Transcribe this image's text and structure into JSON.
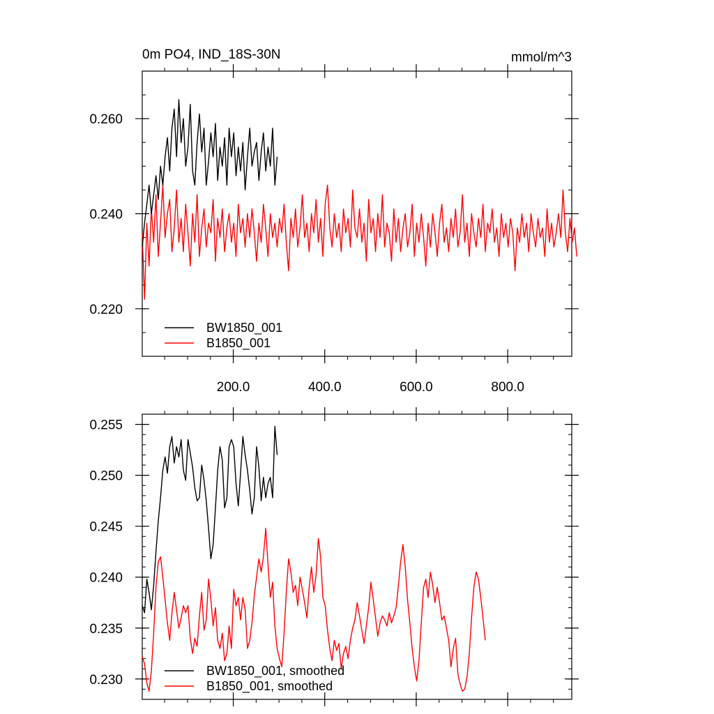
{
  "chart_data": [
    {
      "type": "line",
      "title": "0m PO4, IND_18S-30N",
      "units": "mmol/m^3",
      "xlabel": "",
      "ylabel": "",
      "xlim": [
        1,
        940
      ],
      "ylim": [
        0.21,
        0.27
      ],
      "x_ticks": [
        200,
        400,
        600,
        800
      ],
      "x_tick_labels": [
        "200.0",
        "400.0",
        "600.0",
        "800.0"
      ],
      "y_ticks": [
        0.22,
        0.24,
        0.26
      ],
      "y_tick_labels": [
        "0.220",
        "0.240",
        "0.260"
      ],
      "grid": false,
      "legend_position": "bottom-left",
      "series": [
        {
          "name": "BW1850_001",
          "color": "#000000",
          "x_start": 1,
          "x_step": 5,
          "values": [
            0.233,
            0.238,
            0.242,
            0.246,
            0.24,
            0.244,
            0.248,
            0.243,
            0.25,
            0.246,
            0.252,
            0.256,
            0.249,
            0.258,
            0.262,
            0.252,
            0.264,
            0.255,
            0.26,
            0.25,
            0.254,
            0.263,
            0.249,
            0.246,
            0.255,
            0.261,
            0.253,
            0.258,
            0.246,
            0.251,
            0.257,
            0.252,
            0.259,
            0.247,
            0.254,
            0.25,
            0.256,
            0.246,
            0.258,
            0.252,
            0.257,
            0.248,
            0.254,
            0.249,
            0.255,
            0.245,
            0.252,
            0.258,
            0.25,
            0.253,
            0.255,
            0.247,
            0.253,
            0.257,
            0.249,
            0.254,
            0.25,
            0.258,
            0.246,
            0.252
          ]
        },
        {
          "name": "B1850_001",
          "color": "#ff0000",
          "x_start": 1,
          "x_step": 5,
          "values": [
            0.236,
            0.222,
            0.238,
            0.229,
            0.241,
            0.234,
            0.244,
            0.231,
            0.238,
            0.246,
            0.235,
            0.24,
            0.243,
            0.232,
            0.237,
            0.245,
            0.234,
            0.239,
            0.232,
            0.242,
            0.236,
            0.229,
            0.24,
            0.234,
            0.244,
            0.231,
            0.237,
            0.241,
            0.233,
            0.238,
            0.236,
            0.243,
            0.23,
            0.239,
            0.235,
            0.241,
            0.232,
            0.237,
            0.24,
            0.234,
            0.238,
            0.231,
            0.242,
            0.236,
            0.239,
            0.233,
            0.24,
            0.235,
            0.241,
            0.236,
            0.23,
            0.238,
            0.234,
            0.242,
            0.237,
            0.231,
            0.24,
            0.235,
            0.238,
            0.233,
            0.239,
            0.236,
            0.242,
            0.234,
            0.228,
            0.239,
            0.235,
            0.241,
            0.233,
            0.237,
            0.244,
            0.235,
            0.238,
            0.232,
            0.24,
            0.236,
            0.243,
            0.234,
            0.239,
            0.231,
            0.242,
            0.246,
            0.237,
            0.233,
            0.24,
            0.235,
            0.238,
            0.232,
            0.241,
            0.236,
            0.239,
            0.233,
            0.245,
            0.237,
            0.235,
            0.241,
            0.234,
            0.238,
            0.23,
            0.243,
            0.236,
            0.239,
            0.232,
            0.24,
            0.235,
            0.244,
            0.233,
            0.238,
            0.236,
            0.23,
            0.241,
            0.234,
            0.239,
            0.232,
            0.237,
            0.24,
            0.233,
            0.236,
            0.242,
            0.231,
            0.238,
            0.234,
            0.24,
            0.235,
            0.229,
            0.238,
            0.233,
            0.24,
            0.236,
            0.231,
            0.238,
            0.242,
            0.234,
            0.237,
            0.232,
            0.239,
            0.235,
            0.241,
            0.233,
            0.236,
            0.244,
            0.234,
            0.238,
            0.231,
            0.24,
            0.236,
            0.233,
            0.239,
            0.235,
            0.242,
            0.232,
            0.238,
            0.236,
            0.241,
            0.234,
            0.237,
            0.231,
            0.24,
            0.235,
            0.238,
            0.233,
            0.239,
            0.236,
            0.228,
            0.237,
            0.234,
            0.24,
            0.235,
            0.238,
            0.232,
            0.24,
            0.236,
            0.233,
            0.239,
            0.235,
            0.237,
            0.231,
            0.241,
            0.234,
            0.238,
            0.233,
            0.236,
            0.24,
            0.235,
            0.245,
            0.236,
            0.232,
            0.239,
            0.234,
            0.237,
            0.231
          ]
        }
      ]
    },
    {
      "type": "line",
      "title": "",
      "units": "",
      "xlabel": "",
      "ylabel": "",
      "xlim": [
        1,
        940
      ],
      "ylim": [
        0.228,
        0.256
      ],
      "x_ticks": [
        200,
        400,
        600,
        800
      ],
      "x_tick_labels": [
        "",
        "",
        "",
        ""
      ],
      "y_ticks": [
        0.23,
        0.235,
        0.24,
        0.245,
        0.25,
        0.255
      ],
      "y_tick_labels": [
        "0.230",
        "0.235",
        "0.240",
        "0.245",
        "0.250",
        "0.255"
      ],
      "grid": false,
      "legend_position": "bottom-left",
      "series": [
        {
          "name": "BW1850_001, smoothed",
          "color": "#000000",
          "x_start": 1,
          "x_step": 5,
          "values": [
            0.2372,
            0.2365,
            0.2398,
            0.2385,
            0.2368,
            0.2392,
            0.2425,
            0.2455,
            0.2478,
            0.2505,
            0.2518,
            0.2502,
            0.2528,
            0.2538,
            0.2512,
            0.2528,
            0.2518,
            0.2535,
            0.2505,
            0.2495,
            0.2535,
            0.2522,
            0.2508,
            0.2488,
            0.2475,
            0.2478,
            0.251,
            0.2495,
            0.2475,
            0.2448,
            0.2418,
            0.2432,
            0.2468,
            0.2505,
            0.2528,
            0.2515,
            0.2468,
            0.2478,
            0.2528,
            0.2535,
            0.2528,
            0.2492,
            0.247,
            0.2502,
            0.2538,
            0.252,
            0.2505,
            0.2485,
            0.2462,
            0.2478,
            0.2528,
            0.2508,
            0.2475,
            0.2498,
            0.2478,
            0.2492,
            0.2498,
            0.2478,
            0.2548,
            0.252
          ]
        },
        {
          "name": "B1850_001, smoothed",
          "color": "#ff0000",
          "x_start": 1,
          "x_step": 5,
          "values": [
            0.2322,
            0.2315,
            0.2296,
            0.2288,
            0.2308,
            0.2345,
            0.239,
            0.2415,
            0.242,
            0.24,
            0.2378,
            0.2355,
            0.2338,
            0.2365,
            0.2385,
            0.2368,
            0.235,
            0.236,
            0.2372,
            0.2365,
            0.2372,
            0.234,
            0.2325,
            0.234,
            0.2332,
            0.2362,
            0.2385,
            0.2348,
            0.2358,
            0.2398,
            0.2378,
            0.2352,
            0.237,
            0.2338,
            0.233,
            0.2345,
            0.2318,
            0.2325,
            0.2352,
            0.233,
            0.2388,
            0.2372,
            0.238,
            0.2358,
            0.238,
            0.2368,
            0.233,
            0.2338,
            0.2355,
            0.2382,
            0.24,
            0.2418,
            0.2405,
            0.242,
            0.2448,
            0.2412,
            0.238,
            0.2395,
            0.2352,
            0.233,
            0.232,
            0.2312,
            0.2345,
            0.2385,
            0.2418,
            0.2405,
            0.2385,
            0.2392,
            0.2372,
            0.24,
            0.2388,
            0.2375,
            0.236,
            0.239,
            0.241,
            0.2385,
            0.2402,
            0.2438,
            0.242,
            0.238,
            0.2372,
            0.2348,
            0.233,
            0.2318,
            0.2338,
            0.2328,
            0.2335,
            0.231,
            0.2325,
            0.2332,
            0.232,
            0.2338,
            0.235,
            0.2358,
            0.2375,
            0.2362,
            0.2348,
            0.2335,
            0.2352,
            0.237,
            0.2395,
            0.2378,
            0.236,
            0.2342,
            0.2355,
            0.2362,
            0.2358,
            0.2352,
            0.2365,
            0.2355,
            0.2362,
            0.237,
            0.2392,
            0.2415,
            0.2432,
            0.241,
            0.2378,
            0.2355,
            0.233,
            0.2312,
            0.2298,
            0.2318,
            0.2355,
            0.239,
            0.2398,
            0.238,
            0.2405,
            0.2392,
            0.2375,
            0.239,
            0.2375,
            0.2358,
            0.2362,
            0.235,
            0.2338,
            0.2312,
            0.233,
            0.234,
            0.2305,
            0.2295,
            0.2288,
            0.229,
            0.2302,
            0.2325,
            0.236,
            0.239,
            0.2405,
            0.2398,
            0.238,
            0.236,
            0.2338
          ]
        }
      ]
    }
  ]
}
